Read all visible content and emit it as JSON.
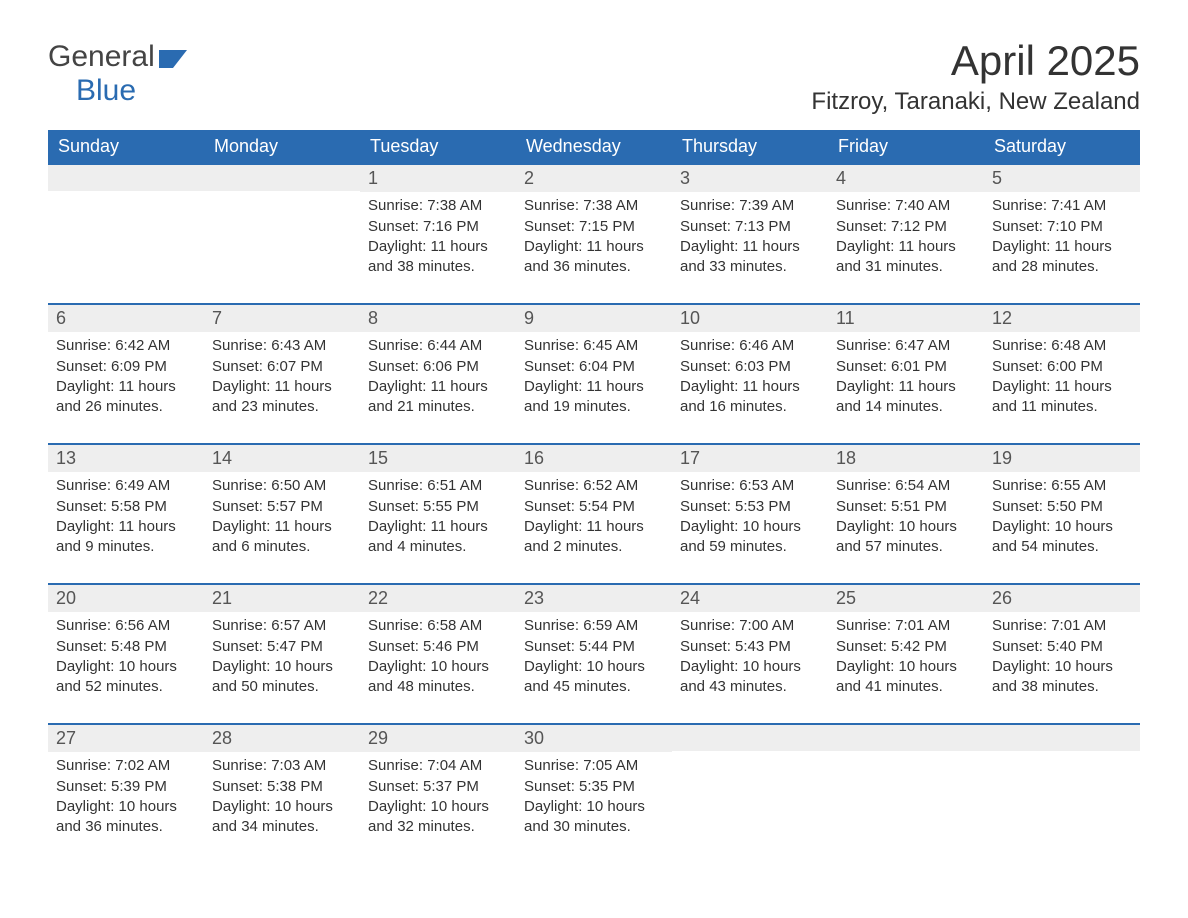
{
  "brand": {
    "part1": "General",
    "part2": "Blue"
  },
  "title": {
    "month": "April 2025",
    "location": "Fitzroy, Taranaki, New Zealand"
  },
  "colors": {
    "header_bg": "#2a6bb1",
    "header_fg": "#ffffff",
    "daynum_bg": "#eeeeee",
    "row_border": "#2a6bb1",
    "text": "#333333",
    "background": "#ffffff"
  },
  "weekdays": [
    "Sunday",
    "Monday",
    "Tuesday",
    "Wednesday",
    "Thursday",
    "Friday",
    "Saturday"
  ],
  "weeks": [
    [
      {
        "n": "",
        "l1": "",
        "l2": "",
        "l3": "",
        "l4": ""
      },
      {
        "n": "",
        "l1": "",
        "l2": "",
        "l3": "",
        "l4": ""
      },
      {
        "n": "1",
        "l1": "Sunrise: 7:38 AM",
        "l2": "Sunset: 7:16 PM",
        "l3": "Daylight: 11 hours",
        "l4": "and 38 minutes."
      },
      {
        "n": "2",
        "l1": "Sunrise: 7:38 AM",
        "l2": "Sunset: 7:15 PM",
        "l3": "Daylight: 11 hours",
        "l4": "and 36 minutes."
      },
      {
        "n": "3",
        "l1": "Sunrise: 7:39 AM",
        "l2": "Sunset: 7:13 PM",
        "l3": "Daylight: 11 hours",
        "l4": "and 33 minutes."
      },
      {
        "n": "4",
        "l1": "Sunrise: 7:40 AM",
        "l2": "Sunset: 7:12 PM",
        "l3": "Daylight: 11 hours",
        "l4": "and 31 minutes."
      },
      {
        "n": "5",
        "l1": "Sunrise: 7:41 AM",
        "l2": "Sunset: 7:10 PM",
        "l3": "Daylight: 11 hours",
        "l4": "and 28 minutes."
      }
    ],
    [
      {
        "n": "6",
        "l1": "Sunrise: 6:42 AM",
        "l2": "Sunset: 6:09 PM",
        "l3": "Daylight: 11 hours",
        "l4": "and 26 minutes."
      },
      {
        "n": "7",
        "l1": "Sunrise: 6:43 AM",
        "l2": "Sunset: 6:07 PM",
        "l3": "Daylight: 11 hours",
        "l4": "and 23 minutes."
      },
      {
        "n": "8",
        "l1": "Sunrise: 6:44 AM",
        "l2": "Sunset: 6:06 PM",
        "l3": "Daylight: 11 hours",
        "l4": "and 21 minutes."
      },
      {
        "n": "9",
        "l1": "Sunrise: 6:45 AM",
        "l2": "Sunset: 6:04 PM",
        "l3": "Daylight: 11 hours",
        "l4": "and 19 minutes."
      },
      {
        "n": "10",
        "l1": "Sunrise: 6:46 AM",
        "l2": "Sunset: 6:03 PM",
        "l3": "Daylight: 11 hours",
        "l4": "and 16 minutes."
      },
      {
        "n": "11",
        "l1": "Sunrise: 6:47 AM",
        "l2": "Sunset: 6:01 PM",
        "l3": "Daylight: 11 hours",
        "l4": "and 14 minutes."
      },
      {
        "n": "12",
        "l1": "Sunrise: 6:48 AM",
        "l2": "Sunset: 6:00 PM",
        "l3": "Daylight: 11 hours",
        "l4": "and 11 minutes."
      }
    ],
    [
      {
        "n": "13",
        "l1": "Sunrise: 6:49 AM",
        "l2": "Sunset: 5:58 PM",
        "l3": "Daylight: 11 hours",
        "l4": "and 9 minutes."
      },
      {
        "n": "14",
        "l1": "Sunrise: 6:50 AM",
        "l2": "Sunset: 5:57 PM",
        "l3": "Daylight: 11 hours",
        "l4": "and 6 minutes."
      },
      {
        "n": "15",
        "l1": "Sunrise: 6:51 AM",
        "l2": "Sunset: 5:55 PM",
        "l3": "Daylight: 11 hours",
        "l4": "and 4 minutes."
      },
      {
        "n": "16",
        "l1": "Sunrise: 6:52 AM",
        "l2": "Sunset: 5:54 PM",
        "l3": "Daylight: 11 hours",
        "l4": "and 2 minutes."
      },
      {
        "n": "17",
        "l1": "Sunrise: 6:53 AM",
        "l2": "Sunset: 5:53 PM",
        "l3": "Daylight: 10 hours",
        "l4": "and 59 minutes."
      },
      {
        "n": "18",
        "l1": "Sunrise: 6:54 AM",
        "l2": "Sunset: 5:51 PM",
        "l3": "Daylight: 10 hours",
        "l4": "and 57 minutes."
      },
      {
        "n": "19",
        "l1": "Sunrise: 6:55 AM",
        "l2": "Sunset: 5:50 PM",
        "l3": "Daylight: 10 hours",
        "l4": "and 54 minutes."
      }
    ],
    [
      {
        "n": "20",
        "l1": "Sunrise: 6:56 AM",
        "l2": "Sunset: 5:48 PM",
        "l3": "Daylight: 10 hours",
        "l4": "and 52 minutes."
      },
      {
        "n": "21",
        "l1": "Sunrise: 6:57 AM",
        "l2": "Sunset: 5:47 PM",
        "l3": "Daylight: 10 hours",
        "l4": "and 50 minutes."
      },
      {
        "n": "22",
        "l1": "Sunrise: 6:58 AM",
        "l2": "Sunset: 5:46 PM",
        "l3": "Daylight: 10 hours",
        "l4": "and 48 minutes."
      },
      {
        "n": "23",
        "l1": "Sunrise: 6:59 AM",
        "l2": "Sunset: 5:44 PM",
        "l3": "Daylight: 10 hours",
        "l4": "and 45 minutes."
      },
      {
        "n": "24",
        "l1": "Sunrise: 7:00 AM",
        "l2": "Sunset: 5:43 PM",
        "l3": "Daylight: 10 hours",
        "l4": "and 43 minutes."
      },
      {
        "n": "25",
        "l1": "Sunrise: 7:01 AM",
        "l2": "Sunset: 5:42 PM",
        "l3": "Daylight: 10 hours",
        "l4": "and 41 minutes."
      },
      {
        "n": "26",
        "l1": "Sunrise: 7:01 AM",
        "l2": "Sunset: 5:40 PM",
        "l3": "Daylight: 10 hours",
        "l4": "and 38 minutes."
      }
    ],
    [
      {
        "n": "27",
        "l1": "Sunrise: 7:02 AM",
        "l2": "Sunset: 5:39 PM",
        "l3": "Daylight: 10 hours",
        "l4": "and 36 minutes."
      },
      {
        "n": "28",
        "l1": "Sunrise: 7:03 AM",
        "l2": "Sunset: 5:38 PM",
        "l3": "Daylight: 10 hours",
        "l4": "and 34 minutes."
      },
      {
        "n": "29",
        "l1": "Sunrise: 7:04 AM",
        "l2": "Sunset: 5:37 PM",
        "l3": "Daylight: 10 hours",
        "l4": "and 32 minutes."
      },
      {
        "n": "30",
        "l1": "Sunrise: 7:05 AM",
        "l2": "Sunset: 5:35 PM",
        "l3": "Daylight: 10 hours",
        "l4": "and 30 minutes."
      },
      {
        "n": "",
        "l1": "",
        "l2": "",
        "l3": "",
        "l4": ""
      },
      {
        "n": "",
        "l1": "",
        "l2": "",
        "l3": "",
        "l4": ""
      },
      {
        "n": "",
        "l1": "",
        "l2": "",
        "l3": "",
        "l4": ""
      }
    ]
  ]
}
